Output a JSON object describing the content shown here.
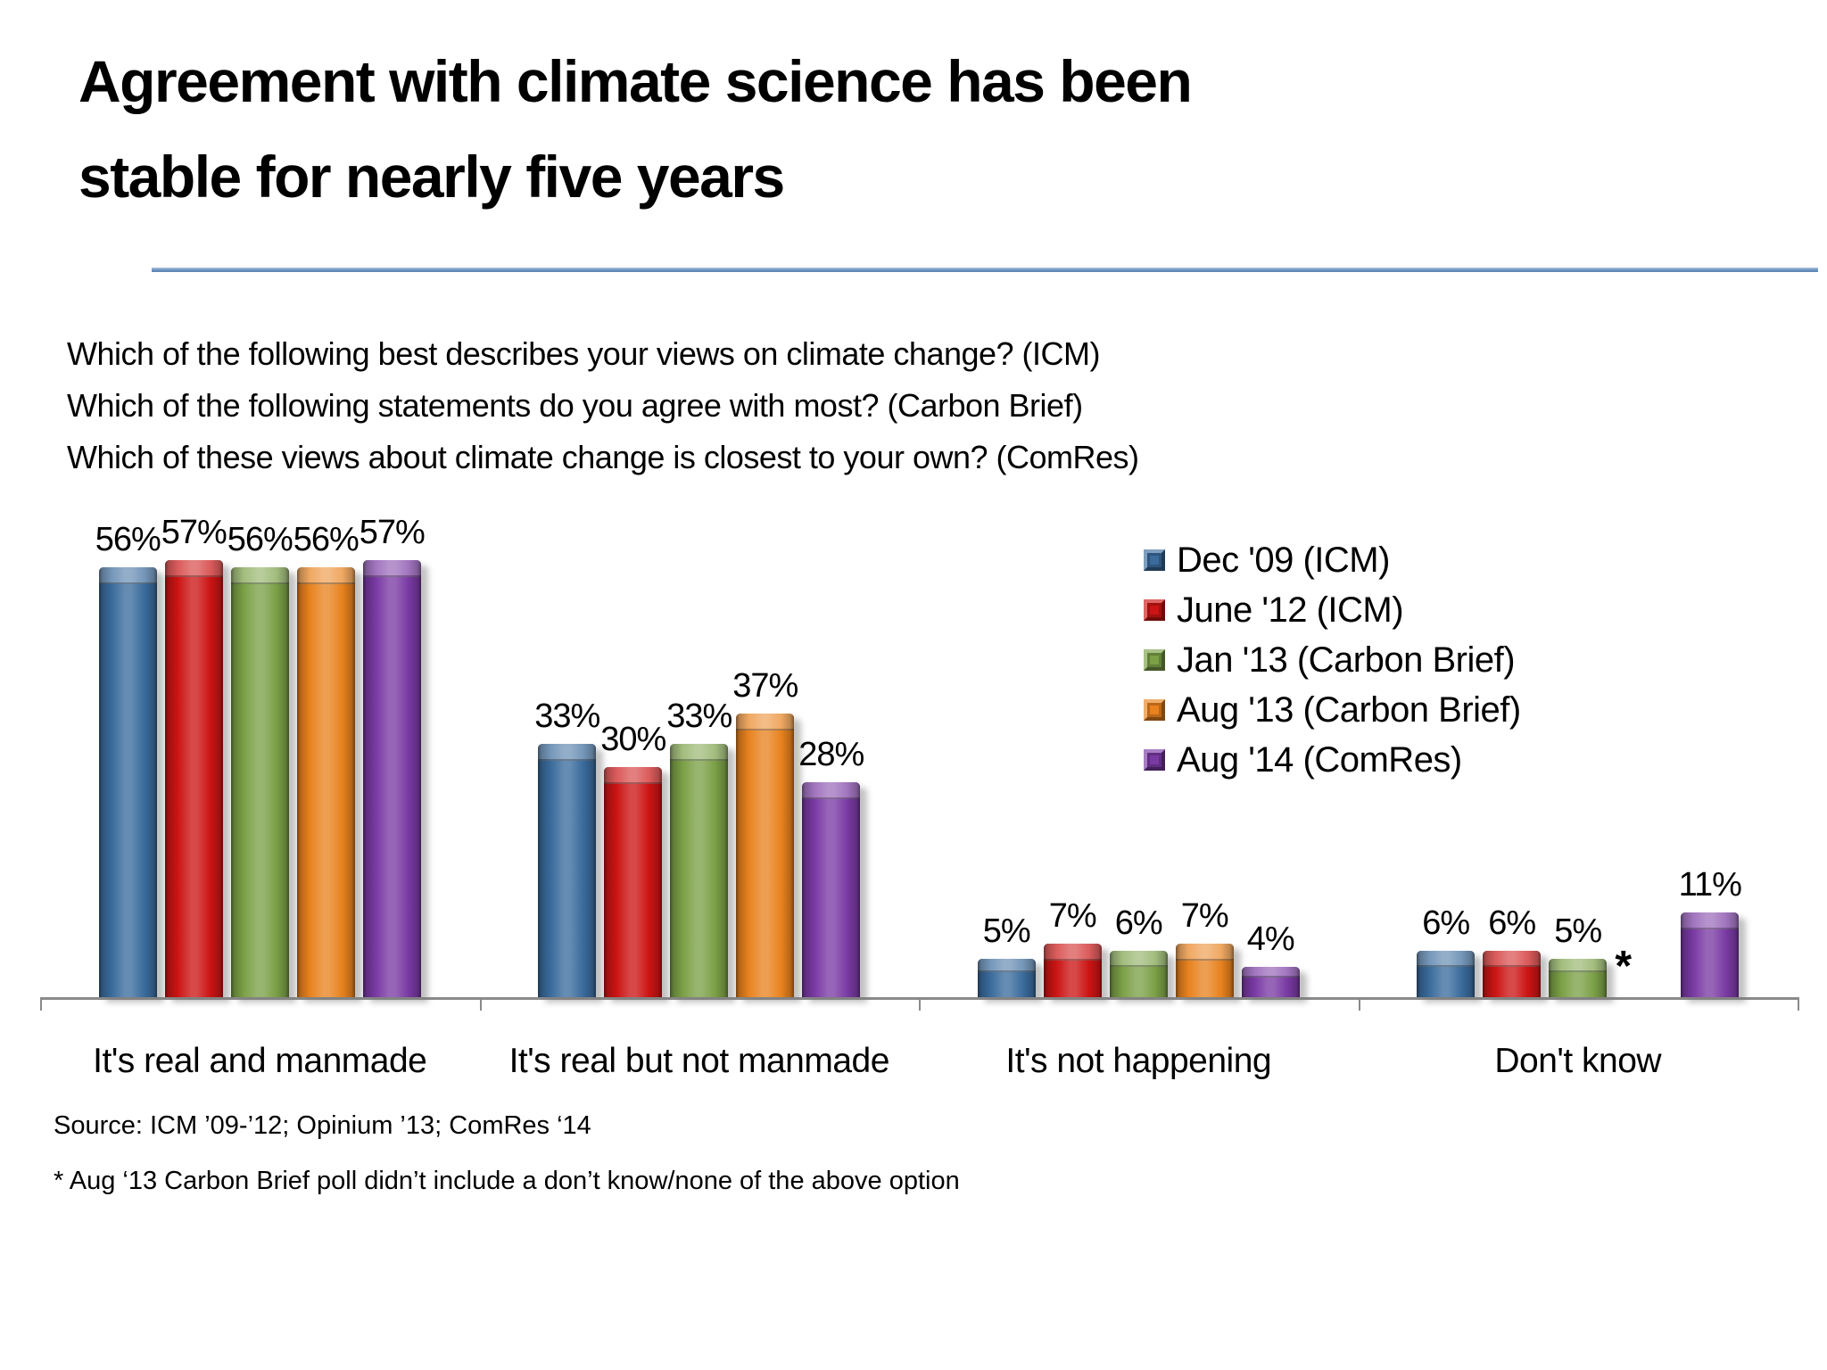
{
  "slide": {
    "title_line1": "Agreement with climate science has been",
    "title_line2": "stable for nearly five years",
    "questions": [
      "Which of the following best describes your views on climate change? (ICM)",
      "Which of the following statements do you agree with most? (Carbon Brief)",
      "Which of these views about climate change is closest to your own? (ComRes)"
    ],
    "source": "Source: ICM ’09-’12; Opinium ’13; ComRes ‘14",
    "footnote": "* Aug ‘13 Carbon Brief poll didn’t include a don’t know/none of the above option"
  },
  "chart_data": {
    "type": "bar",
    "categories": [
      "It's real and manmade",
      "It's real but not manmade",
      "It's not happening",
      "Don't know"
    ],
    "series": [
      {
        "name": "Dec '09 (ICM)",
        "color": "#3a6b9c",
        "values": [
          56,
          33,
          5,
          6
        ]
      },
      {
        "name": "June '12 (ICM)",
        "color": "#cc1414",
        "values": [
          57,
          30,
          7,
          6
        ]
      },
      {
        "name": "Jan '13 (Carbon Brief)",
        "color": "#7ba046",
        "values": [
          56,
          33,
          6,
          5
        ]
      },
      {
        "name": "Aug '13 (Carbon Brief)",
        "color": "#e8821e",
        "values": [
          56,
          37,
          7,
          null
        ]
      },
      {
        "name": "Aug '14 (ComRes)",
        "color": "#7a3aa4",
        "values": [
          57,
          28,
          4,
          11
        ]
      }
    ],
    "unit": "%",
    "missing_marker": "*",
    "ylim": [
      0,
      60
    ],
    "grid": false,
    "legend_position": "upper-right",
    "axis_color": "#8a8a8a"
  }
}
